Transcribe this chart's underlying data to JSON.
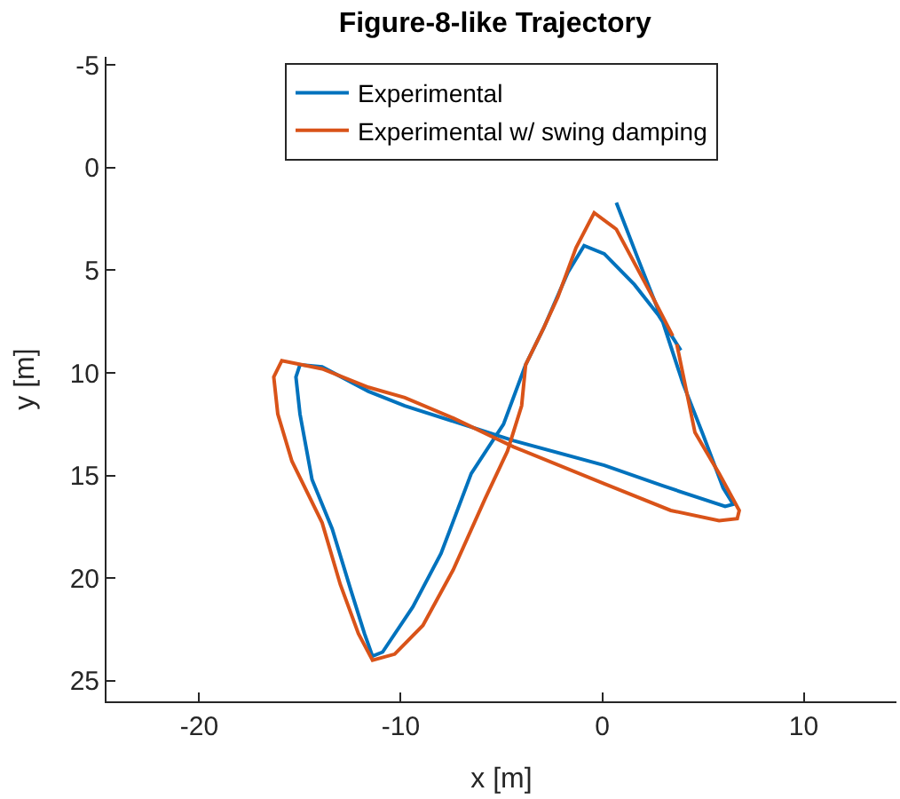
{
  "chart_data": {
    "type": "line",
    "title": "Figure-8-like Trajectory",
    "xlabel": "x [m]",
    "ylabel": "y [m]",
    "xlim": [
      -24.6,
      14.6
    ],
    "xticks": [
      -20,
      -10,
      0,
      10
    ],
    "ylim": [
      26,
      -5.4
    ],
    "yticks": [
      -5,
      0,
      5,
      10,
      15,
      20,
      25
    ],
    "grid": false,
    "legend": "top",
    "marker": "none",
    "line_style": "solid",
    "series": [
      {
        "name": "Experimental",
        "color": "#0072bd",
        "x": [
          0.7,
          1.8,
          3.0,
          4.0,
          5.0,
          6.0,
          6.5,
          6.1,
          3.0,
          0.1,
          -4.4,
          -9.8,
          -11.6,
          -13.9,
          -15.0,
          -15.2,
          -15.0,
          -14.4,
          -13.4,
          -12.5,
          -11.8,
          -11.4,
          -10.9,
          -9.4,
          -8.0,
          -6.5,
          -4.9,
          -3.8,
          -2.9,
          -1.7,
          -0.9,
          0.1,
          1.6,
          2.8,
          3.9
        ],
        "values": [
          1.7,
          4.5,
          7.5,
          10.5,
          13.0,
          15.6,
          16.4,
          16.5,
          15.5,
          14.5,
          13.3,
          11.6,
          10.9,
          9.7,
          9.6,
          10.2,
          12.0,
          15.2,
          17.6,
          20.5,
          22.7,
          23.8,
          23.6,
          21.4,
          18.8,
          14.9,
          12.5,
          9.6,
          7.8,
          5.1,
          3.8,
          4.2,
          5.7,
          7.2,
          8.9
        ]
      },
      {
        "name": "Experimental w/ swing damping",
        "color": "#d95319",
        "x": [
          3.7,
          4.6,
          5.8,
          6.8,
          6.7,
          5.8,
          3.4,
          0.1,
          -4.4,
          -7.4,
          -9.8,
          -11.6,
          -13.9,
          -15.9,
          -16.3,
          -16.1,
          -15.4,
          -13.9,
          -13.0,
          -12.1,
          -11.4,
          -10.3,
          -8.9,
          -7.4,
          -5.8,
          -4.7,
          -4.0,
          -3.8,
          -2.9,
          -2.2,
          -1.3,
          -0.4,
          0.7,
          2.5,
          3.5
        ],
        "values": [
          8.6,
          12.9,
          14.9,
          16.7,
          17.1,
          17.2,
          16.7,
          15.4,
          13.6,
          12.2,
          11.2,
          10.7,
          9.8,
          9.4,
          10.2,
          12.0,
          14.3,
          17.3,
          20.3,
          22.7,
          24.0,
          23.7,
          22.3,
          19.6,
          16.1,
          13.8,
          11.6,
          9.6,
          7.8,
          6.3,
          3.9,
          2.2,
          3.0,
          6.3,
          8.2
        ]
      }
    ]
  }
}
